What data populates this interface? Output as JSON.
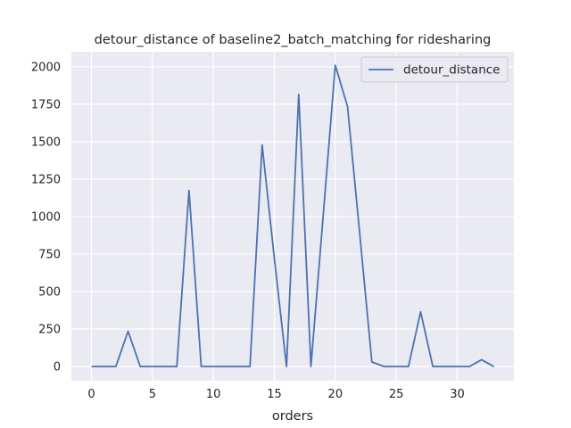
{
  "chart_data": {
    "type": "line",
    "title": "detour_distance of baseline2_batch_matching for ridesharing",
    "xlabel": "orders",
    "ylabel": "",
    "xlim": [
      -1.65,
      34.65
    ],
    "ylim": [
      -95,
      2100
    ],
    "xticks": [
      0,
      5,
      10,
      15,
      20,
      25,
      30
    ],
    "yticks": [
      0,
      250,
      500,
      750,
      1000,
      1250,
      1500,
      1750,
      2000
    ],
    "grid": true,
    "legend_position": "top-right",
    "colors": {
      "background": "#eaeaf2",
      "grid": "#ffffff",
      "line": "#4c72b0"
    },
    "series": [
      {
        "name": "detour_distance",
        "x": [
          0,
          1,
          2,
          3,
          4,
          5,
          6,
          7,
          8,
          9,
          10,
          11,
          12,
          13,
          14,
          15,
          16,
          17,
          18,
          19,
          20,
          21,
          22,
          23,
          24,
          25,
          26,
          27,
          28,
          29,
          30,
          31,
          32,
          33
        ],
        "values": [
          0,
          0,
          0,
          235,
          0,
          0,
          0,
          0,
          1175,
          0,
          0,
          0,
          0,
          0,
          1478,
          720,
          0,
          1815,
          0,
          1000,
          2010,
          1735,
          890,
          30,
          0,
          0,
          0,
          365,
          0,
          0,
          0,
          0,
          45,
          0
        ]
      }
    ]
  }
}
